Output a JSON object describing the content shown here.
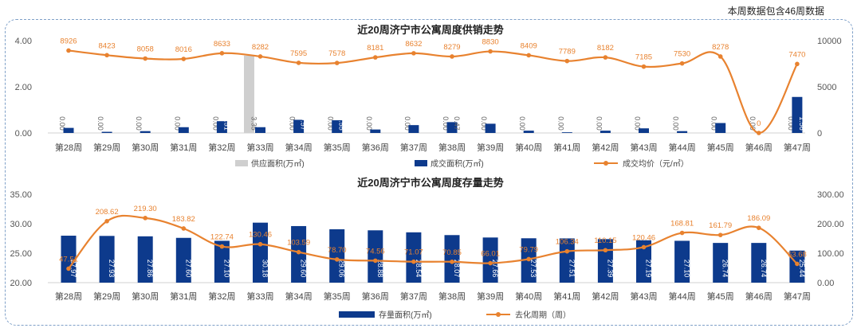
{
  "note": "本周数据包含46周数据",
  "chart_data": [
    {
      "type": "bar",
      "title": "近20周济宁市公寓周度供销走势",
      "categories": [
        "第28周",
        "第29周",
        "第30周",
        "第31周",
        "第32周",
        "第33周",
        "第34周",
        "第35周",
        "第36周",
        "第37周",
        "第38周",
        "第39周",
        "第40周",
        "第41周",
        "第42周",
        "第43周",
        "第44周",
        "第45周",
        "第46周",
        "第47周"
      ],
      "ylim": [
        0,
        4
      ],
      "y_ticks": [
        "0.00",
        "2.00",
        "4.00"
      ],
      "y2lim": [
        0,
        10000
      ],
      "y2_ticks": [
        "0",
        "5000",
        "10000"
      ],
      "series": [
        {
          "name": "供应面积(万㎡)",
          "kind": "bar",
          "color": "#cfcfcf",
          "values": [
            0,
            0,
            0,
            0,
            0,
            3.35,
            0,
            0,
            0,
            0,
            0,
            0,
            0,
            0,
            0,
            0,
            0,
            0,
            0,
            0
          ],
          "labels": [
            "0.00",
            "0.00",
            "0.00",
            "0.00",
            "0.00",
            "3.35",
            "0.00",
            "0.00",
            "0.00",
            "0.00",
            "0.00",
            "0.00",
            "0.00",
            "0.00",
            "0.00",
            "0.00",
            "0.00",
            "0.00",
            "0.00",
            "0.00"
          ]
        },
        {
          "name": "成交面积(万㎡)",
          "kind": "bar",
          "color": "#0d3a8c",
          "values": [
            0.22,
            0.05,
            0.08,
            0.25,
            0.51,
            0.25,
            0.57,
            0.55,
            0.15,
            0.34,
            0.47,
            0.4,
            0.1,
            0.03,
            0.1,
            0.2,
            0.08,
            0.43,
            0,
            1.56
          ],
          "labels": [
            "",
            "",
            "",
            "",
            "0.51",
            "",
            "0.57",
            "0.55",
            "",
            "",
            "0.47",
            "",
            "",
            "",
            "",
            "",
            "",
            "",
            "",
            "1.56"
          ]
        },
        {
          "name": "成交均价（元/㎡）",
          "kind": "line",
          "axis": "right",
          "color": "#e8822f",
          "values": [
            8926,
            8423,
            8058,
            8016,
            8633,
            8282,
            7595,
            7578,
            8181,
            8632,
            8279,
            8830,
            8409,
            7789,
            8182,
            7185,
            7530,
            8278,
            0,
            7470
          ]
        }
      ],
      "legend": "bottom"
    },
    {
      "type": "bar",
      "title": "近20周济宁市公寓周度存量走势",
      "categories": [
        "第28周",
        "第29周",
        "第30周",
        "第31周",
        "第32周",
        "第33周",
        "第34周",
        "第35周",
        "第36周",
        "第37周",
        "第38周",
        "第39周",
        "第40周",
        "第41周",
        "第42周",
        "第43周",
        "第44周",
        "第45周",
        "第46周",
        "第47周"
      ],
      "ylim": [
        20,
        35
      ],
      "y_ticks": [
        "20.00",
        "25.00",
        "30.00",
        "35.00"
      ],
      "y2lim": [
        0,
        300
      ],
      "y2_ticks": [
        "0.00",
        "100.00",
        "200.00",
        "300.00"
      ],
      "series": [
        {
          "name": "存量面积(万㎡)",
          "kind": "bar",
          "color": "#0d3a8c",
          "values": [
            27.97,
            27.93,
            27.86,
            27.6,
            27.1,
            30.18,
            29.6,
            29.06,
            28.88,
            28.54,
            28.07,
            27.66,
            27.53,
            27.51,
            27.39,
            27.19,
            27.1,
            26.74,
            26.74,
            25.44
          ]
        },
        {
          "name": "去化周期（周）",
          "kind": "line",
          "axis": "right",
          "color": "#e8822f",
          "values": [
            47.51,
            208.62,
            219.3,
            183.82,
            122.74,
            130.46,
            103.59,
            78.7,
            74.56,
            71.07,
            70.85,
            66.01,
            79.79,
            106.34,
            110.15,
            120.46,
            168.81,
            161.79,
            186.09,
            63.68
          ]
        }
      ],
      "legend": "bottom"
    }
  ]
}
